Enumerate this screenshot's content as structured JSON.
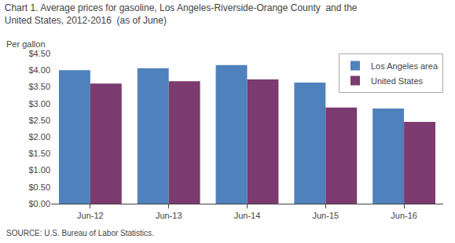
{
  "chart_data": {
    "type": "bar",
    "title": "Chart 1. Average prices for gasoline, Los Angeles-Riverside-Orange County  and the\nUnited States, 2012-2016  (as of June)",
    "ylabel": "Per gallon",
    "annotations": [
      "SOURCE: U.S. Bureau of Labor Statistics."
    ],
    "categories": [
      "Jun-12",
      "Jun-13",
      "Jun-14",
      "Jun-15",
      "Jun-16"
    ],
    "series": [
      {
        "name": "Los Angeles area",
        "color": "#4F81BD",
        "values": [
          4.0,
          4.06,
          4.15,
          3.63,
          2.85
        ]
      },
      {
        "name": "United States",
        "color": "#7B3B6E",
        "values": [
          3.6,
          3.67,
          3.72,
          2.88,
          2.45
        ]
      }
    ],
    "ylim": [
      0,
      4.5
    ],
    "yticks": [
      {
        "value": 0.0,
        "label": "$0.00"
      },
      {
        "value": 0.5,
        "label": "$0.50"
      },
      {
        "value": 1.0,
        "label": "$1.00"
      },
      {
        "value": 1.5,
        "label": "$1.50"
      },
      {
        "value": 2.0,
        "label": "$2.00"
      },
      {
        "value": 2.5,
        "label": "$2.50"
      },
      {
        "value": 3.0,
        "label": "$3.00"
      },
      {
        "value": 3.5,
        "label": "$3.50"
      },
      {
        "value": 4.0,
        "label": "$4.00"
      },
      {
        "value": 4.5,
        "label": "$4.50"
      }
    ],
    "grid": false,
    "legend": "upper right"
  }
}
